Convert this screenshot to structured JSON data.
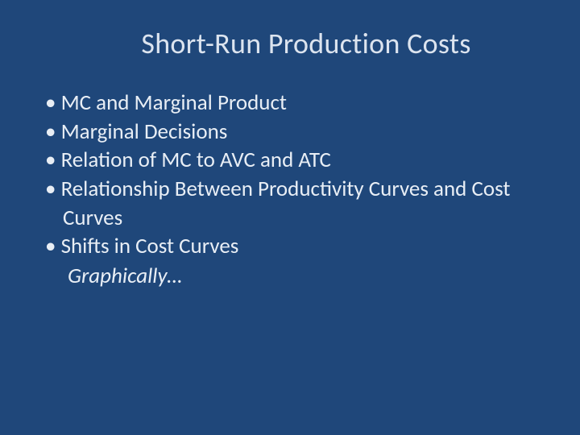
{
  "slide": {
    "background_color": "#1f477a",
    "text_color": "#e8eef5",
    "title_color": "#dce4ef",
    "title": "Short-Run Production Costs",
    "title_fontsize": 36,
    "body_fontsize": 27,
    "bullets": [
      "MC and Marginal Product",
      "Marginal Decisions",
      "Relation of MC to AVC and ATC",
      "Relationship Between Productivity Curves and Cost Curves",
      "Shifts in Cost Curves"
    ],
    "sub_note": "Graphically…",
    "sub_note_italic": true
  }
}
